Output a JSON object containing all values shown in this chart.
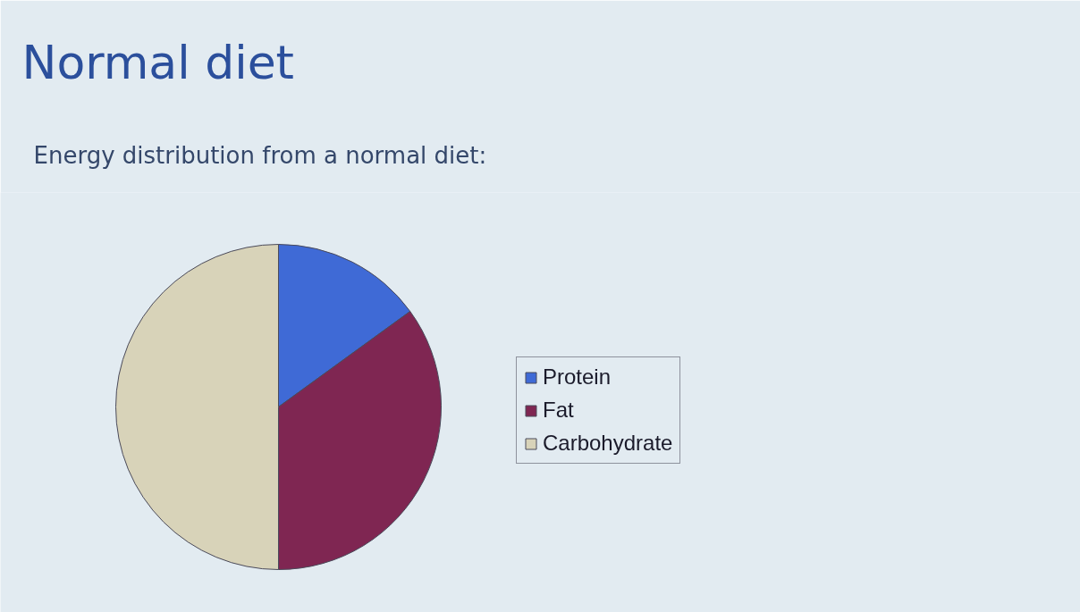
{
  "chart_data": {
    "type": "pie",
    "title": "Normal diet",
    "subtitle": "Energy distribution from a normal diet:",
    "categories": [
      "Protein",
      "Fat",
      "Carbohydrate"
    ],
    "values": [
      15,
      35,
      50
    ],
    "colors": [
      "#3f6ad6",
      "#7f2652",
      "#d8d3b9"
    ],
    "legend": "right"
  }
}
